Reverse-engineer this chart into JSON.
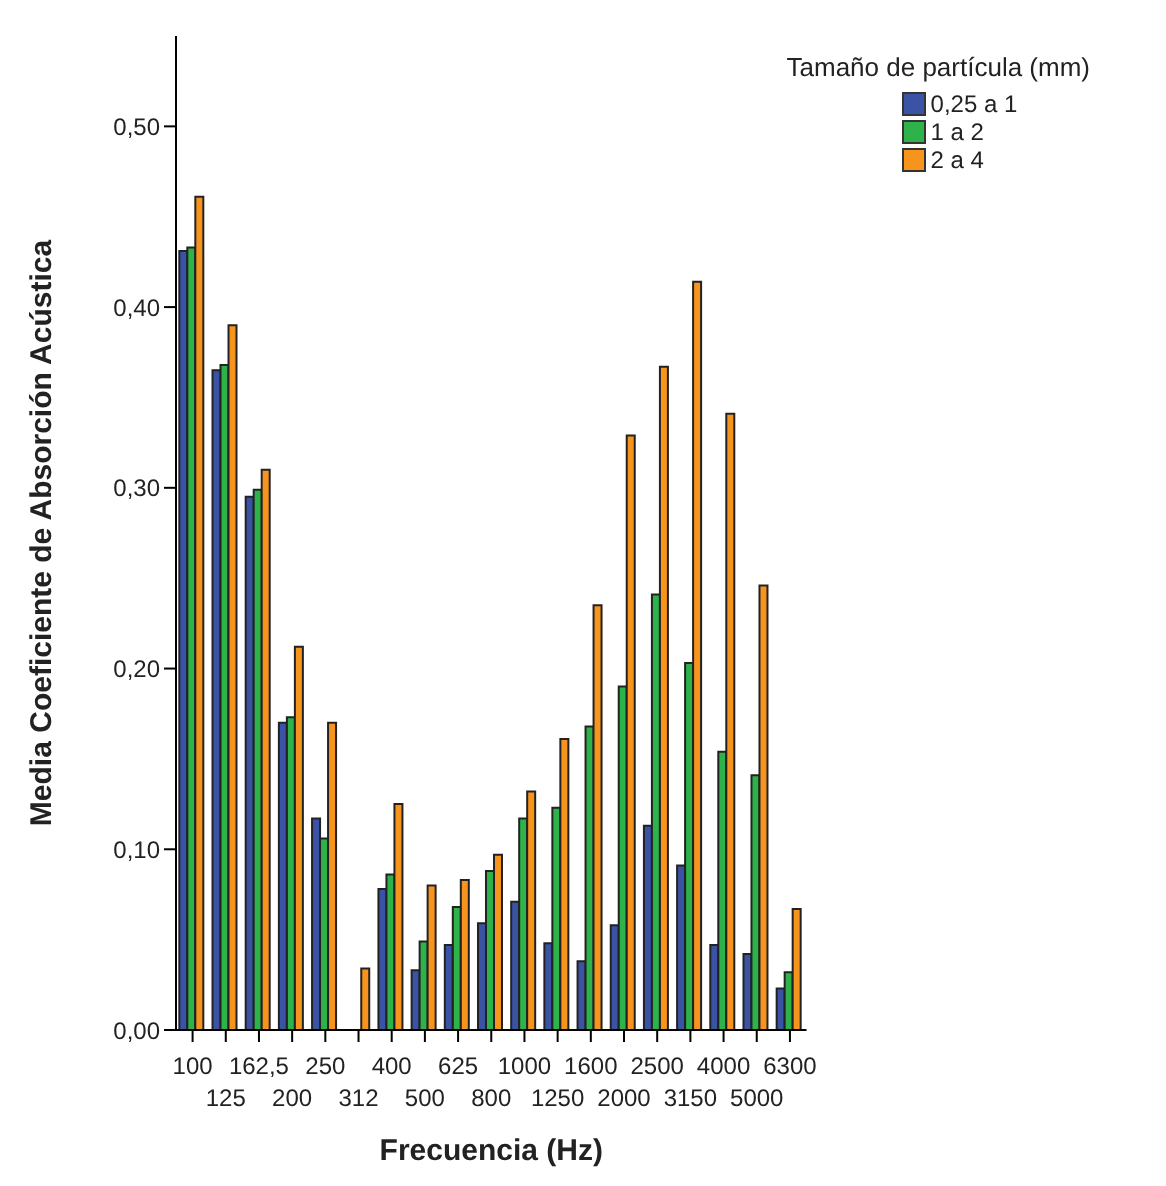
{
  "chart_data": {
    "type": "bar",
    "xlabel": "Frecuencia (Hz)",
    "ylabel": "Media Coeficiente de Absorción Acústica",
    "legend_title": "Tamaño de partícula (mm)",
    "categories": [
      "100",
      "125",
      "162,5",
      "200",
      "250",
      "312",
      "400",
      "500",
      "625",
      "800",
      "1000",
      "1250",
      "1600",
      "2000",
      "2500",
      "3150",
      "4000",
      "5000",
      "6300"
    ],
    "series": [
      {
        "name": "0,25 a 1",
        "color": "#3a53a4",
        "values": [
          0.431,
          0.365,
          0.295,
          0.17,
          0.117,
          null,
          0.078,
          0.033,
          0.047,
          0.059,
          0.071,
          0.048,
          0.038,
          0.058,
          0.113,
          0.091,
          0.047,
          0.042,
          0.023
        ]
      },
      {
        "name": "1 a 2",
        "color": "#2db34a",
        "values": [
          0.433,
          0.368,
          0.299,
          0.173,
          0.106,
          null,
          0.086,
          0.049,
          0.068,
          0.088,
          0.117,
          0.123,
          0.168,
          0.19,
          0.241,
          0.203,
          0.154,
          0.141,
          0.032
        ]
      },
      {
        "name": "2 a 4",
        "color": "#f7941d",
        "values": [
          0.461,
          0.39,
          0.31,
          0.212,
          0.17,
          0.034,
          0.125,
          0.08,
          0.083,
          0.097,
          0.132,
          0.161,
          0.235,
          0.329,
          0.367,
          0.414,
          0.341,
          0.246,
          0.067
        ]
      }
    ],
    "ylim": [
      0,
      0.55
    ],
    "yticks": [
      {
        "value": 0,
        "label": "0,00"
      },
      {
        "value": 0.1,
        "label": "0,10"
      },
      {
        "value": 0.2,
        "label": "0,20"
      },
      {
        "value": 0.3,
        "label": "0,30"
      },
      {
        "value": 0.4,
        "label": "0,40"
      },
      {
        "value": 0.5,
        "label": "0,50"
      }
    ],
    "grid": false,
    "legend": "top right"
  }
}
